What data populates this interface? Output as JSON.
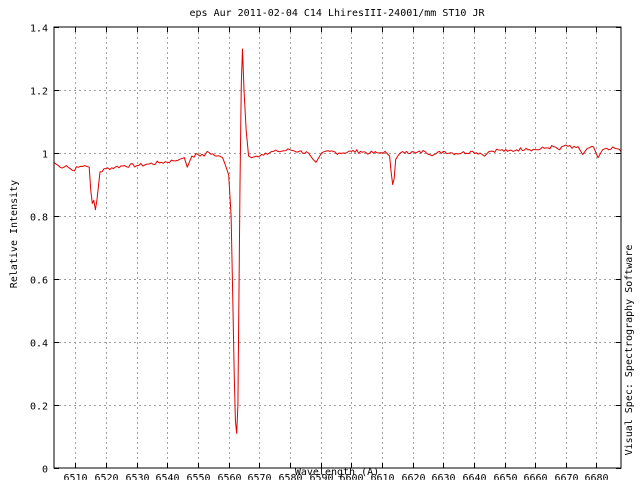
{
  "chart_data": {
    "type": "line",
    "title": "eps Aur 2011-02-04 C14 LhiresIII-24001/mm ST10  JR",
    "xlabel": "Wavelength (A)",
    "ylabel": "Relative Intensity",
    "side_label": "Visual Spec: Spectrography Software",
    "xlim": [
      6503,
      6688
    ],
    "ylim": [
      0,
      1.4
    ],
    "x_ticks": [
      6510,
      6520,
      6530,
      6540,
      6550,
      6560,
      6570,
      6580,
      6590,
      6600,
      6610,
      6620,
      6630,
      6640,
      6650,
      6660,
      6670,
      6680
    ],
    "y_ticks": [
      0,
      0.2,
      0.4,
      0.6,
      0.8,
      1,
      1.2,
      1.4
    ],
    "y_tick_labels": [
      "0",
      "0.2",
      "0.4",
      "0.6",
      "0.8",
      "1",
      "1.2",
      "1.4"
    ],
    "grid": true,
    "legend": "none",
    "series": [
      {
        "color": "#e00000",
        "x": [
          6503,
          6505,
          6507,
          6509,
          6511,
          6513,
          6514.5,
          6515,
          6515.5,
          6516,
          6516.5,
          6517,
          6518,
          6520,
          6523,
          6526,
          6530,
          6534,
          6538,
          6542,
          6544,
          6545.5,
          6546.5,
          6548,
          6550,
          6552,
          6553,
          6556,
          6558,
          6559,
          6560,
          6560.8,
          6561.3,
          6561.8,
          6562.2,
          6562.6,
          6563,
          6563.3,
          6563.7,
          6564.1,
          6564.5,
          6565,
          6565.7,
          6566.5,
          6567.5,
          6569,
          6572,
          6576,
          6580,
          6583,
          6586,
          6587.5,
          6588.5,
          6590,
          6593,
          6596,
          6600,
          6603,
          6606,
          6609,
          6611,
          6612.5,
          6613,
          6613.5,
          6614,
          6614.5,
          6615.5,
          6618,
          6621,
          6624,
          6627,
          6630,
          6633,
          6636,
          6639,
          6642,
          6643.5,
          6645,
          6648,
          6651,
          6654,
          6657,
          6660,
          6663,
          6666,
          6668,
          6670,
          6672,
          6674,
          6675.5,
          6677,
          6679,
          6680.5,
          6682,
          6684,
          6686,
          6688
        ],
        "y": [
          0.97,
          0.955,
          0.96,
          0.945,
          0.955,
          0.96,
          0.955,
          0.88,
          0.84,
          0.85,
          0.82,
          0.85,
          0.94,
          0.95,
          0.955,
          0.96,
          0.96,
          0.965,
          0.97,
          0.975,
          0.98,
          0.985,
          0.955,
          0.99,
          0.995,
          0.99,
          1.005,
          0.99,
          0.985,
          0.96,
          0.93,
          0.8,
          0.55,
          0.3,
          0.15,
          0.11,
          0.2,
          0.5,
          0.9,
          1.22,
          1.33,
          1.2,
          1.07,
          0.99,
          0.985,
          0.99,
          1.0,
          1.005,
          1.01,
          1.005,
          1.0,
          0.98,
          0.97,
          0.995,
          1.005,
          1.0,
          1.005,
          1.005,
          1.0,
          1.0,
          1.005,
          0.99,
          0.94,
          0.9,
          0.92,
          0.98,
          0.995,
          1.005,
          1.0,
          1.005,
          0.995,
          1.005,
          1.0,
          1.0,
          1.005,
          1.0,
          0.99,
          1.005,
          1.01,
          1.005,
          1.01,
          1.015,
          1.01,
          1.015,
          1.02,
          1.01,
          1.025,
          1.015,
          1.02,
          0.995,
          1.015,
          1.02,
          0.985,
          1.01,
          1.01,
          1.015,
          1.005
        ]
      }
    ]
  }
}
